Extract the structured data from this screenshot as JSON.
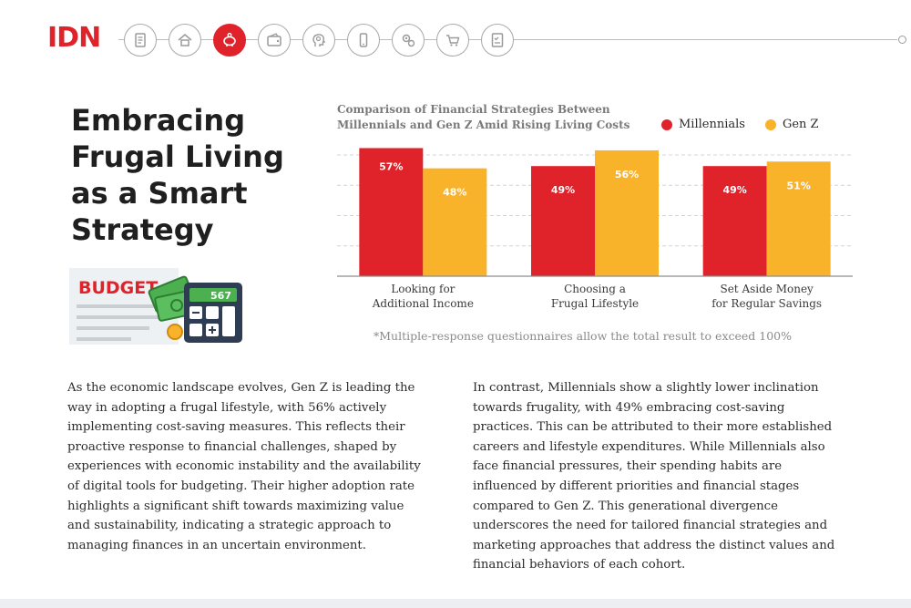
{
  "brand": {
    "logo_text": "IDN",
    "accent": "#e0232a"
  },
  "nav_icons": [
    "document-icon",
    "house-icon",
    "piggy-bank-icon",
    "wallet-icon",
    "head-idea-icon",
    "smartphone-icon",
    "gears-coins-icon",
    "shopping-cart-icon",
    "checklist-icon"
  ],
  "nav_active_index": 2,
  "headline": {
    "line1": "Embracing",
    "line2": "Frugal Living",
    "line3": "as a Smart",
    "line4": "Strategy"
  },
  "budget_illustration": {
    "label": "BUDGET",
    "display": "567"
  },
  "chart_data": {
    "type": "bar",
    "title_line1": "Comparison of Financial Strategies Between",
    "title_line2": "Millennials and Gen Z Amid Rising Living Costs",
    "categories": [
      [
        "Looking for",
        "Additional Income"
      ],
      [
        "Choosing a",
        "Frugal Lifestyle"
      ],
      [
        "Set Aside Money",
        "for Regular Savings"
      ]
    ],
    "series": [
      {
        "name": "Millennials",
        "color": "#e0232a",
        "values": [
          57,
          49,
          49
        ]
      },
      {
        "name": "Gen Z",
        "color": "#f9b32b",
        "values": [
          48,
          56,
          51
        ]
      }
    ],
    "value_suffix": "%",
    "ylim": [
      0,
      58
    ],
    "grid": true,
    "legend_position": "top-right"
  },
  "footnote": "*Multiple-response questionnaires allow the total result to exceed 100%",
  "paragraphs": {
    "left": "As the economic landscape evolves, Gen Z is leading the way in adopting a frugal lifestyle, with 56% actively implementing cost-saving measures. This reflects their proactive response to financial challenges, shaped by experiences with economic instability and the availability of digital tools for budgeting. Their higher adoption rate highlights a significant shift towards maximizing value and sustainability, indicating a strategic approach to managing finances in an uncertain environment.",
    "right": "In contrast, Millennials show a slightly lower inclination towards frugality, with 49% embracing cost-saving practices. This can be attributed to their more established careers and lifestyle expenditures. While Millennials also face financial pressures, their spending habits are influenced by different priorities and financial stages compared to Gen Z. This generational divergence underscores the need for tailored financial strategies and marketing approaches that address the distinct values and financial behaviors of each cohort."
  }
}
